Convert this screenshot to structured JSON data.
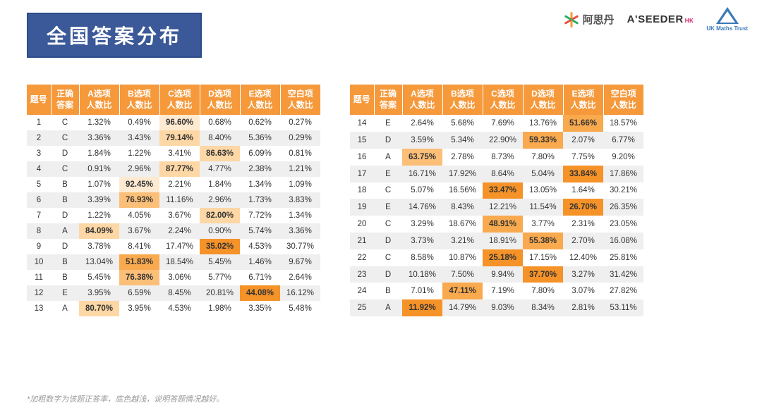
{
  "title": "全国答案分布",
  "logos": {
    "asd_text": "阿思丹",
    "seeder_text": "A'SEEDER",
    "seeder_sub": "HK",
    "ukmt_text": "UK Maths Trust"
  },
  "columns": [
    "题号",
    "正确\n答案",
    "A选项\n人数比",
    "B选项\n人数比",
    "C选项\n人数比",
    "D选项\n人数比",
    "E选项\n人数比",
    "空白项\n人数比"
  ],
  "footnote": "*加粗数字为该题正答率，底色越浅，说明答题情况越好。",
  "colors": {
    "header_bg": "#f5993b",
    "header_fg": "#ffffff",
    "title_bg": "#3b5998",
    "highlight_scale": [
      "#f59228",
      "#f9a94e",
      "#fbbf78",
      "#fdd7a5",
      "#feead0"
    ]
  },
  "table_left": [
    {
      "q": 1,
      "ans": "C",
      "A": "1.32%",
      "B": "0.49%",
      "C": "96.60%",
      "D": "0.68%",
      "E": "0.62%",
      "blank": "0.27%",
      "hl": {
        "C": 4
      }
    },
    {
      "q": 2,
      "ans": "C",
      "A": "3.36%",
      "B": "3.43%",
      "C": "79.14%",
      "D": "8.40%",
      "E": "5.36%",
      "blank": "0.29%",
      "hl": {
        "C": 3
      }
    },
    {
      "q": 3,
      "ans": "D",
      "A": "1.84%",
      "B": "1.22%",
      "C": "3.41%",
      "D": "86.63%",
      "E": "6.09%",
      "blank": "0.81%",
      "hl": {
        "D": 3
      }
    },
    {
      "q": 4,
      "ans": "C",
      "A": "0.91%",
      "B": "2.96%",
      "C": "87.77%",
      "D": "4.77%",
      "E": "2.38%",
      "blank": "1.21%",
      "hl": {
        "C": 3
      }
    },
    {
      "q": 5,
      "ans": "B",
      "A": "1.07%",
      "B": "92.45%",
      "C": "2.21%",
      "D": "1.84%",
      "E": "1.34%",
      "blank": "1.09%",
      "hl": {
        "B": 4
      }
    },
    {
      "q": 6,
      "ans": "B",
      "A": "3.39%",
      "B": "76.93%",
      "C": "11.16%",
      "D": "2.96%",
      "E": "1.73%",
      "blank": "3.83%",
      "hl": {
        "B": 2
      }
    },
    {
      "q": 7,
      "ans": "D",
      "A": "1.22%",
      "B": "4.05%",
      "C": "3.67%",
      "D": "82.00%",
      "E": "7.72%",
      "blank": "1.34%",
      "hl": {
        "D": 3
      }
    },
    {
      "q": 8,
      "ans": "A",
      "A": "84.09%",
      "B": "3.67%",
      "C": "2.24%",
      "D": "0.90%",
      "E": "5.74%",
      "blank": "3.36%",
      "hl": {
        "A": 3
      }
    },
    {
      "q": 9,
      "ans": "D",
      "A": "3.78%",
      "B": "8.41%",
      "C": "17.47%",
      "D": "35.02%",
      "E": "4.53%",
      "blank": "30.77%",
      "hl": {
        "D": 0
      }
    },
    {
      "q": 10,
      "ans": "B",
      "A": "13.04%",
      "B": "51.83%",
      "C": "18.54%",
      "D": "5.45%",
      "E": "1.46%",
      "blank": "9.67%",
      "hl": {
        "B": 1
      }
    },
    {
      "q": 11,
      "ans": "B",
      "A": "5.45%",
      "B": "76.38%",
      "C": "3.06%",
      "D": "5.77%",
      "E": "6.71%",
      "blank": "2.64%",
      "hl": {
        "B": 2
      }
    },
    {
      "q": 12,
      "ans": "E",
      "A": "3.95%",
      "B": "6.59%",
      "C": "8.45%",
      "D": "20.81%",
      "E": "44.08%",
      "blank": "16.12%",
      "hl": {
        "E": 0
      }
    },
    {
      "q": 13,
      "ans": "A",
      "A": "80.70%",
      "B": "3.95%",
      "C": "4.53%",
      "D": "1.98%",
      "E": "3.35%",
      "blank": "5.48%",
      "hl": {
        "A": 3
      }
    }
  ],
  "table_right": [
    {
      "q": 14,
      "ans": "E",
      "A": "2.64%",
      "B": "5.68%",
      "C": "7.69%",
      "D": "13.76%",
      "E": "51.66%",
      "blank": "18.57%",
      "hl": {
        "E": 1
      }
    },
    {
      "q": 15,
      "ans": "D",
      "A": "3.59%",
      "B": "5.34%",
      "C": "22.90%",
      "D": "59.33%",
      "E": "2.07%",
      "blank": "6.77%",
      "hl": {
        "D": 1
      }
    },
    {
      "q": 16,
      "ans": "A",
      "A": "63.75%",
      "B": "2.78%",
      "C": "8.73%",
      "D": "7.80%",
      "E": "7.75%",
      "blank": "9.20%",
      "hl": {
        "A": 2
      }
    },
    {
      "q": 17,
      "ans": "E",
      "A": "16.71%",
      "B": "17.92%",
      "C": "8.64%",
      "D": "5.04%",
      "E": "33.84%",
      "blank": "17.86%",
      "hl": {
        "E": 0
      }
    },
    {
      "q": 18,
      "ans": "C",
      "A": "5.07%",
      "B": "16.56%",
      "C": "33.47%",
      "D": "13.05%",
      "E": "1.64%",
      "blank": "30.21%",
      "hl": {
        "C": 0
      }
    },
    {
      "q": 19,
      "ans": "E",
      "A": "14.76%",
      "B": "8.43%",
      "C": "12.21%",
      "D": "11.54%",
      "E": "26.70%",
      "blank": "26.35%",
      "hl": {
        "E": 0
      }
    },
    {
      "q": 20,
      "ans": "C",
      "A": "3.29%",
      "B": "18.67%",
      "C": "48.91%",
      "D": "3.77%",
      "E": "2.31%",
      "blank": "23.05%",
      "hl": {
        "C": 1
      }
    },
    {
      "q": 21,
      "ans": "D",
      "A": "3.73%",
      "B": "3.21%",
      "C": "18.91%",
      "D": "55.38%",
      "E": "2.70%",
      "blank": "16.08%",
      "hl": {
        "D": 1
      }
    },
    {
      "q": 22,
      "ans": "C",
      "A": "8.58%",
      "B": "10.87%",
      "C": "25.18%",
      "D": "17.15%",
      "E": "12.40%",
      "blank": "25.81%",
      "hl": {
        "C": 0
      }
    },
    {
      "q": 23,
      "ans": "D",
      "A": "10.18%",
      "B": "7.50%",
      "C": "9.94%",
      "D": "37.70%",
      "E": "3.27%",
      "blank": "31.42%",
      "hl": {
        "D": 0
      }
    },
    {
      "q": 24,
      "ans": "B",
      "A": "7.01%",
      "B": "47.11%",
      "C": "7.19%",
      "D": "7.80%",
      "E": "3.07%",
      "blank": "27.82%",
      "hl": {
        "B": 1
      }
    },
    {
      "q": 25,
      "ans": "A",
      "A": "11.92%",
      "B": "14.79%",
      "C": "9.03%",
      "D": "8.34%",
      "E": "2.81%",
      "blank": "53.11%",
      "hl": {
        "A": 0
      }
    }
  ]
}
